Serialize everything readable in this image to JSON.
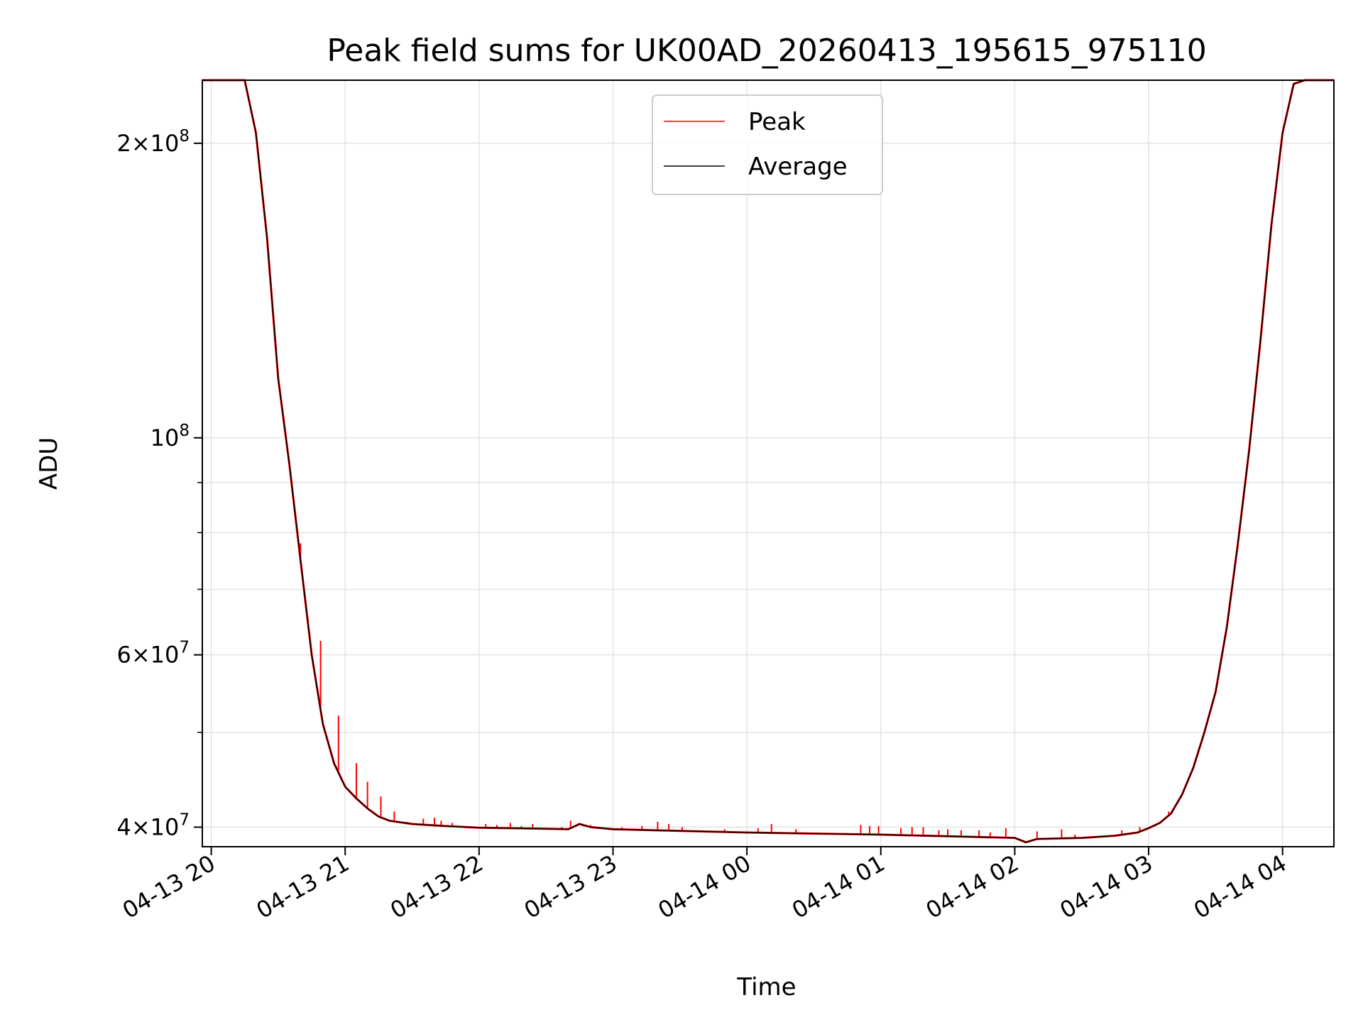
{
  "chart_data": {
    "type": "line",
    "title": "Peak field sums for UK00AD_20260413_195615_975110",
    "xlabel": "Time",
    "ylabel": "ADU",
    "y_scale": "log",
    "ylim": [
      38200000,
      232000000
    ],
    "xlim": [
      "04-13 19:56",
      "04-14 04:23"
    ],
    "grid": true,
    "legend_position": "top-center",
    "x_ticks": [
      {
        "time": "04-13 20:00",
        "label": "04-13 20"
      },
      {
        "time": "04-13 21:00",
        "label": "04-13 21"
      },
      {
        "time": "04-13 22:00",
        "label": "04-13 22"
      },
      {
        "time": "04-13 23:00",
        "label": "04-13 23"
      },
      {
        "time": "04-14 00:00",
        "label": "04-14 00"
      },
      {
        "time": "04-14 01:00",
        "label": "04-14 01"
      },
      {
        "time": "04-14 02:00",
        "label": "04-14 02"
      },
      {
        "time": "04-14 03:00",
        "label": "04-14 03"
      },
      {
        "time": "04-14 04:00",
        "label": "04-14 04"
      }
    ],
    "y_major_ticks": [
      {
        "value": 40000000,
        "mantissa": "4×10",
        "exp": "7"
      },
      {
        "value": 60000000,
        "mantissa": "6×10",
        "exp": "7"
      },
      {
        "value": 100000000,
        "mantissa": "10",
        "exp": "8"
      },
      {
        "value": 200000000,
        "mantissa": "2×10",
        "exp": "8"
      }
    ],
    "y_minor_ticks": [
      50000000,
      70000000,
      80000000,
      90000000
    ],
    "series": [
      {
        "name": "Peak",
        "color": "#ff0000",
        "spikes": [
          [
            "04-13 20:40",
            78000000
          ],
          [
            "04-13 20:49",
            62000000
          ],
          [
            "04-13 20:57",
            52000000
          ],
          [
            "04-13 21:05",
            46500000
          ],
          [
            "04-13 21:10",
            44500000
          ],
          [
            "04-13 21:16",
            43000000
          ],
          [
            "04-13 21:22",
            41500000
          ],
          [
            "04-13 21:28",
            40500000
          ],
          [
            "04-13 21:35",
            40800000
          ],
          [
            "04-13 21:40",
            40900000
          ],
          [
            "04-13 21:43",
            40600000
          ],
          [
            "04-13 21:48",
            40400000
          ],
          [
            "04-13 22:03",
            40300000
          ],
          [
            "04-13 22:08",
            40200000
          ],
          [
            "04-13 22:14",
            40400000
          ],
          [
            "04-13 22:19",
            40100000
          ],
          [
            "04-13 22:24",
            40300000
          ],
          [
            "04-13 22:37",
            40000000
          ],
          [
            "04-13 22:41",
            40600000
          ],
          [
            "04-13 22:45",
            40400000
          ],
          [
            "04-13 22:50",
            40200000
          ],
          [
            "04-13 23:04",
            40000000
          ],
          [
            "04-13 23:13",
            40100000
          ],
          [
            "04-13 23:20",
            40500000
          ],
          [
            "04-13 23:25",
            40300000
          ],
          [
            "04-13 23:31",
            40000000
          ],
          [
            "04-13 23:50",
            39800000
          ],
          [
            "04-14 00:05",
            39900000
          ],
          [
            "04-14 00:11",
            40300000
          ],
          [
            "04-14 00:22",
            39800000
          ],
          [
            "04-14 00:51",
            40200000
          ],
          [
            "04-14 00:55",
            40100000
          ],
          [
            "04-14 00:59",
            40100000
          ],
          [
            "04-14 01:09",
            39900000
          ],
          [
            "04-14 01:14",
            40000000
          ],
          [
            "04-14 01:19",
            40000000
          ],
          [
            "04-14 01:26",
            39700000
          ],
          [
            "04-14 01:30",
            39800000
          ],
          [
            "04-14 01:36",
            39700000
          ],
          [
            "04-14 01:44",
            39700000
          ],
          [
            "04-14 01:49",
            39500000
          ],
          [
            "04-14 01:56",
            39900000
          ],
          [
            "04-14 02:10",
            39600000
          ],
          [
            "04-14 02:21",
            39800000
          ],
          [
            "04-14 02:27",
            39300000
          ],
          [
            "04-14 02:48",
            39700000
          ],
          [
            "04-14 02:56",
            40000000
          ],
          [
            "04-14 03:09",
            41500000
          ],
          [
            "04-14 03:24",
            47500000
          ],
          [
            "04-14 03:32",
            57000000
          ],
          [
            "04-14 03:39",
            72000000
          ],
          [
            "04-14 03:46",
            91000000
          ]
        ]
      },
      {
        "name": "Average",
        "color": "#000000",
        "x": [
          "04-13 19:56",
          "04-13 20:15",
          "04-13 20:20",
          "04-13 20:25",
          "04-13 20:30",
          "04-13 20:35",
          "04-13 20:40",
          "04-13 20:45",
          "04-13 20:50",
          "04-13 20:55",
          "04-13 21:00",
          "04-13 21:05",
          "04-13 21:10",
          "04-13 21:15",
          "04-13 21:20",
          "04-13 21:30",
          "04-13 21:45",
          "04-13 22:00",
          "04-13 22:30",
          "04-13 22:40",
          "04-13 22:45",
          "04-13 22:50",
          "04-13 23:00",
          "04-13 23:30",
          "04-14 00:00",
          "04-14 00:30",
          "04-14 01:00",
          "04-14 01:30",
          "04-14 02:00",
          "04-14 02:05",
          "04-14 02:10",
          "04-14 02:30",
          "04-14 02:45",
          "04-14 02:55",
          "04-14 03:00",
          "04-14 03:05",
          "04-14 03:10",
          "04-14 03:15",
          "04-14 03:20",
          "04-14 03:25",
          "04-14 03:30",
          "04-14 03:35",
          "04-14 03:40",
          "04-14 03:45",
          "04-14 03:50",
          "04-14 03:55",
          "04-14 04:00",
          "04-14 04:05",
          "04-14 04:10",
          "04-14 04:23"
        ],
        "values": [
          232000000,
          232000000,
          205000000,
          160000000,
          115000000,
          94000000,
          75000000,
          60000000,
          51000000,
          46500000,
          44000000,
          42800000,
          41800000,
          41000000,
          40600000,
          40300000,
          40100000,
          39950000,
          39850000,
          39800000,
          40300000,
          40000000,
          39800000,
          39650000,
          39500000,
          39400000,
          39300000,
          39150000,
          39000000,
          38600000,
          38900000,
          39000000,
          39200000,
          39500000,
          39900000,
          40400000,
          41300000,
          43200000,
          46000000,
          50000000,
          55000000,
          64000000,
          78000000,
          97000000,
          125000000,
          165000000,
          205000000,
          230000000,
          232000000,
          232000000
        ]
      }
    ]
  }
}
